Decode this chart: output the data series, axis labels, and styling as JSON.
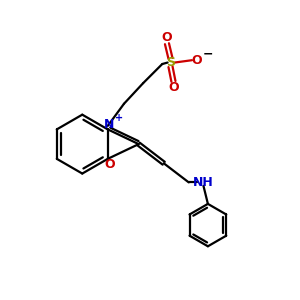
{
  "bg_color": "#ffffff",
  "black": "#000000",
  "blue": "#0000cc",
  "red": "#cc0000",
  "sulfur_color": "#999900",
  "lw": 1.6,
  "xlim": [
    0,
    10
  ],
  "ylim": [
    0,
    10
  ]
}
